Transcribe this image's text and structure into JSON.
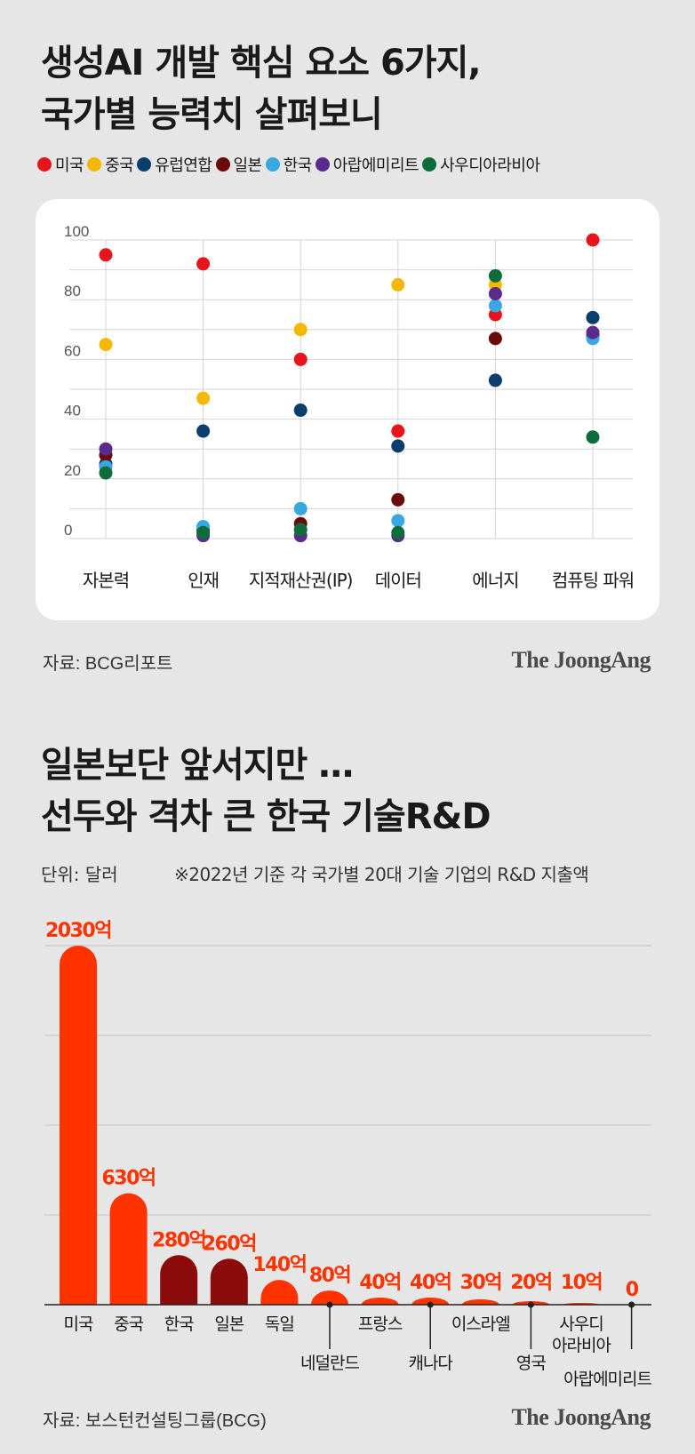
{
  "chart1": {
    "title_line1": "생성AI 개발 핵심 요소 6가지,",
    "title_line2": "국가별 능력치 살펴보니",
    "legend": [
      {
        "name": "미국",
        "color": "#e8141c"
      },
      {
        "name": "중국",
        "color": "#f5b800"
      },
      {
        "name": "유럽연합",
        "color": "#0b3d6e"
      },
      {
        "name": "일본",
        "color": "#6b0a0a"
      },
      {
        "name": "한국",
        "color": "#3aa8e0"
      },
      {
        "name": "아랍에미리트",
        "color": "#5a2a8c"
      },
      {
        "name": "사우디아라비아",
        "color": "#0e6b3a"
      }
    ],
    "source": "자료: BCG리포트",
    "brand": "The JoongAng"
  },
  "chart2": {
    "title_line1": "일본보단 앞서지만 …",
    "title_line2": "선두와 격차 큰 한국 기술R&D",
    "unit": "단위: 달러",
    "note": "※2022년 기준 각 국가별 20대 기술 기업의 R&D 지출액",
    "source": "자료: 보스턴컨설팅그룹(BCG)",
    "brand": "The JoongAng"
  },
  "chart_data": [
    {
      "type": "scatter",
      "categories": [
        "자본력",
        "인재",
        "지적재산권(IP)",
        "데이터",
        "에너지",
        "컴퓨팅 파워"
      ],
      "ylim": [
        0,
        100
      ],
      "yticks": [
        0,
        20,
        40,
        60,
        80,
        100
      ],
      "grid": true,
      "series": [
        {
          "name": "미국",
          "color": "#e8141c",
          "values": [
            95,
            92,
            60,
            36,
            75,
            100
          ]
        },
        {
          "name": "중국",
          "color": "#f5b800",
          "values": [
            65,
            47,
            70,
            85,
            85,
            68
          ]
        },
        {
          "name": "유럽연합",
          "color": "#0b3d6e",
          "values": [
            25,
            36,
            43,
            31,
            53,
            74
          ]
        },
        {
          "name": "일본",
          "color": "#6b0a0a",
          "values": [
            28,
            3,
            5,
            13,
            67,
            68
          ]
        },
        {
          "name": "한국",
          "color": "#3aa8e0",
          "values": [
            24,
            4,
            10,
            6,
            78,
            67
          ]
        },
        {
          "name": "아랍에미리트",
          "color": "#5a2a8c",
          "values": [
            30,
            1,
            1,
            1,
            82,
            69
          ]
        },
        {
          "name": "사우디아라비아",
          "color": "#0e6b3a",
          "values": [
            22,
            2,
            3,
            2,
            88,
            34
          ]
        }
      ]
    },
    {
      "type": "bar",
      "categories": [
        "미국",
        "중국",
        "한국",
        "일본",
        "독일",
        "네덜란드",
        "프랑스",
        "캐나다",
        "이스라엘",
        "영국",
        "사우디 아라비아",
        "아랍에미리트"
      ],
      "labels_top": [
        "미국",
        "중국",
        "한국",
        "일본",
        "독일",
        "",
        "프랑스",
        "",
        "이스라엘",
        "",
        "사우디 아라비아",
        ""
      ],
      "labels_bottom": [
        "",
        "",
        "",
        "",
        "",
        "네덜란드",
        "",
        "캐나다",
        "",
        "영국",
        "",
        "아랍에미리트"
      ],
      "values": [
        2030,
        630,
        280,
        260,
        140,
        80,
        40,
        40,
        30,
        20,
        10,
        0
      ],
      "value_labels": [
        "2030억",
        "630억",
        "280억",
        "260억",
        "140억",
        "80억",
        "40억",
        "40억",
        "30억",
        "20억",
        "10억",
        "0"
      ],
      "colors": [
        "#ff3300",
        "#ff3300",
        "#8b0a0a",
        "#8b0a0a",
        "#ff3300",
        "#ff3300",
        "#ff3300",
        "#ff3300",
        "#ff3300",
        "#ff3300",
        "#ff3300",
        "#ff3300"
      ],
      "ylim": [
        0,
        2030
      ],
      "grid": true
    }
  ]
}
